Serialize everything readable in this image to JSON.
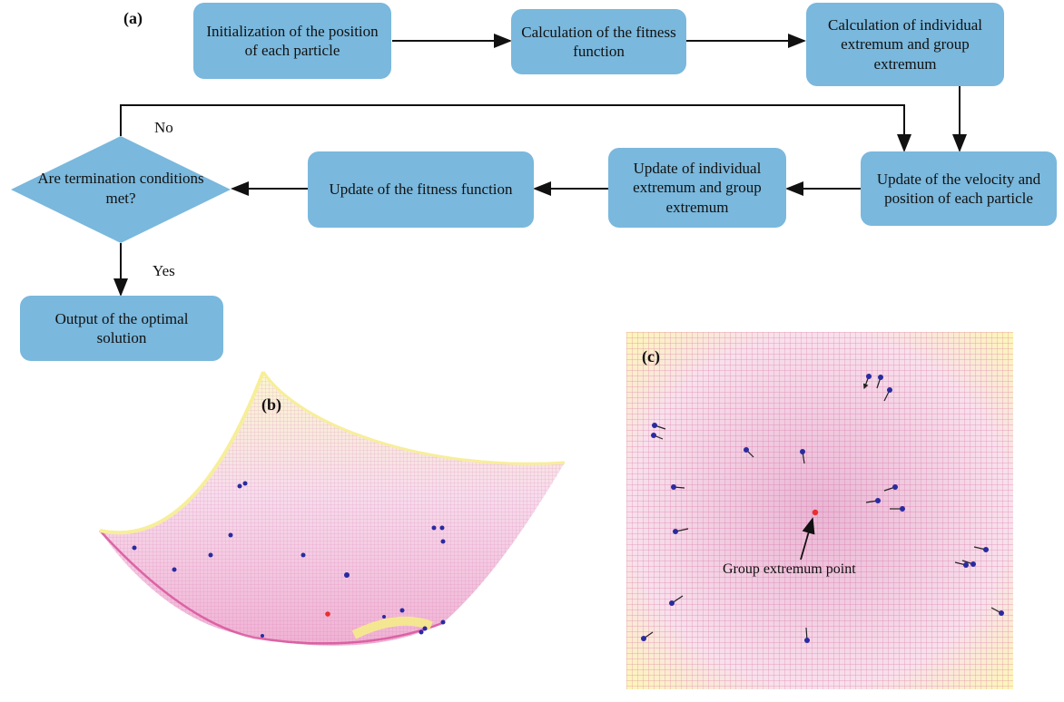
{
  "panels": {
    "a": "(a)",
    "b": "(b)",
    "c": "(c)"
  },
  "flowchart": {
    "init": "Initialization of the position of each particle",
    "calc_fitness": "Calculation of the fitness function",
    "calc_extremum": "Calculation of individual extremum and group extremum",
    "update_velocity": "Update of the velocity and position of each particle",
    "update_extremum": "Update of individual extremum and group extremum",
    "update_fitness": "Update of the fitness function",
    "decision": "Are termination conditions met?",
    "output": "Output of the optimal solution",
    "no_label": "No",
    "yes_label": "Yes"
  },
  "panel_c": {
    "annotation": "Group extremum point"
  },
  "colors": {
    "box": "#7ab8dd",
    "particle": "#2a2aa0",
    "best": "#e83030",
    "grid": "#c8508a",
    "surface_edge": "#f5ec8a"
  }
}
